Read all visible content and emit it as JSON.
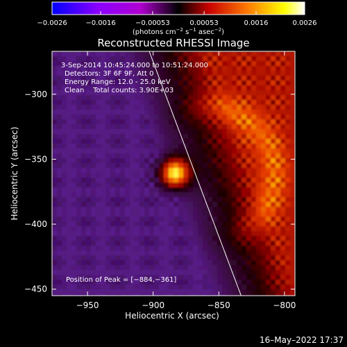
{
  "chart_data": {
    "type": "heatmap",
    "title": "Reconstructed RHESSI Image",
    "xlabel": "Heliocentric X (arcsec)",
    "ylabel": "Heliocentric Y (arcsec)",
    "xlim": [
      -977,
      -792
    ],
    "ylim": [
      -455,
      -267
    ],
    "x_ticks": [
      -950,
      -900,
      -850,
      -800
    ],
    "x_tick_labels": [
      "−950",
      "−900",
      "−850",
      "−800"
    ],
    "y_ticks": [
      -450,
      -400,
      -350,
      -300
    ],
    "y_tick_labels": [
      "−450",
      "−400",
      "−350",
      "−300"
    ],
    "colorbar": {
      "range": [
        -0.0026,
        0.0026
      ],
      "tick_values": [
        -0.0026,
        -0.0016,
        -0.00053,
        0.00053,
        0.0016,
        0.0026
      ],
      "tick_labels": [
        "−0.0026",
        "−0.0016",
        "−0.00053",
        "0.00053",
        "0.0016",
        "0.0026"
      ],
      "unit_parts": [
        "(photons cm",
        "−2",
        " s",
        "−1",
        " asec",
        "−2",
        ")"
      ]
    },
    "annotations": [
      "3-Sep-2014 10:45:24.000 to 10:51:24.000",
      "Detectors: 3F 6F 9F, Att 0",
      "Energy Range: 12.0 - 25.0 keV",
      "Clean    Total counts: 3.90E+03"
    ],
    "peak_label": "Position of Peak = [−884,−361]",
    "peak": [
      -884,
      -361
    ],
    "limb_line": [
      [
        -903,
        -267
      ],
      [
        -833,
        -455
      ]
    ],
    "timestamp": "16–May–2022 17:37",
    "grid": false,
    "colors": {
      "background": "#000000",
      "foreground": "#ffffff",
      "colormap": [
        "#0000ff",
        "#8a00ff",
        "#b000d0",
        "#000000",
        "#c80000",
        "#ff8000",
        "#ffff00",
        "#ffffff"
      ]
    }
  }
}
